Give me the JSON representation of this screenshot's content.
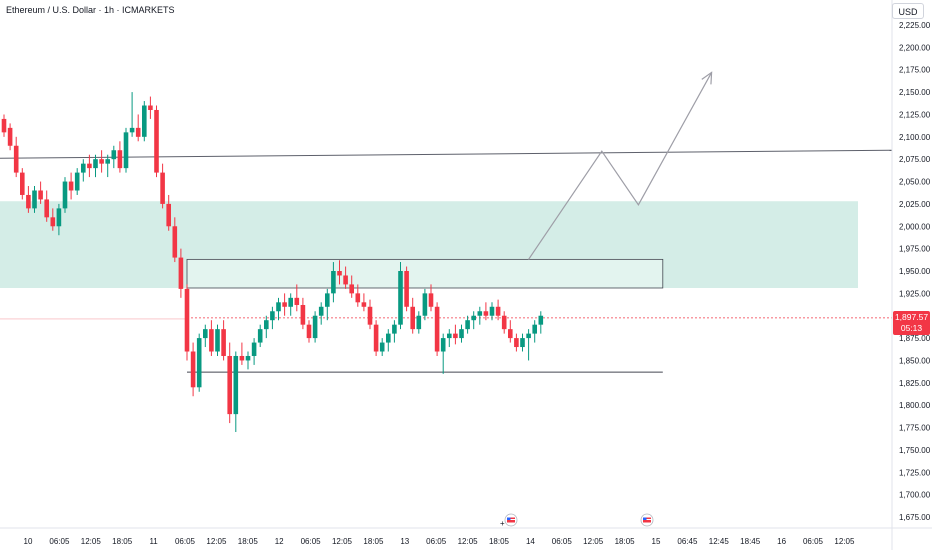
{
  "header": {
    "symbol_title": "Ethereum / U.S. Dollar · 1h · ICMARKETS",
    "currency": "USD"
  },
  "price_label": {
    "price": "1,897.57",
    "countdown": "05:13",
    "color": "#f23645"
  },
  "colors": {
    "up": "#089981",
    "down": "#f23645",
    "zone": "#cdeae3",
    "line": "#787b86"
  },
  "icons": [
    "flag-icon",
    "flag-icon"
  ],
  "chart_data": {
    "type": "candlestick",
    "title": "Ethereum / U.S. Dollar · 1h · ICMARKETS",
    "ylabel": "USD",
    "ylim": [
      1662,
      2236
    ],
    "yticks": [
      1675,
      1700,
      1725,
      1750,
      1775,
      1800,
      1825,
      1850,
      1875,
      1900,
      1925,
      1950,
      1975,
      2000,
      2025,
      2050,
      2075,
      2100,
      2125,
      2150,
      2175,
      2200,
      2225
    ],
    "y_tick_labels": [
      "1,675.00",
      "1,700.00",
      "1,725.00",
      "1,750.00",
      "1,775.00",
      "1,800.00",
      "1,825.00",
      "1,850.00",
      "1,875.00",
      "1,900.00",
      "1,925.00",
      "1,950.00",
      "1,975.00",
      "2,000.00",
      "2,025.00",
      "2,050.00",
      "2,075.00",
      "2,100.00",
      "2,125.00",
      "2,150.00",
      "2,175.00",
      "2,200.00",
      "2,225.00"
    ],
    "x_tick_labels": [
      "10",
      "06:05",
      "12:05",
      "18:05",
      "11",
      "06:05",
      "12:05",
      "18:05",
      "12",
      "06:05",
      "12:05",
      "18:05",
      "13",
      "06:05",
      "12:05",
      "18:05",
      "14",
      "06:05",
      "12:05",
      "18:05",
      "15",
      "06:45",
      "12:45",
      "18:45",
      "16",
      "06:05",
      "12:05"
    ],
    "bar_spacing_hours": 1,
    "candles": [
      [
        2120,
        2125,
        2100,
        2105
      ],
      [
        2110,
        2115,
        2085,
        2090
      ],
      [
        2090,
        2100,
        2055,
        2060
      ],
      [
        2060,
        2065,
        2030,
        2035
      ],
      [
        2035,
        2045,
        2015,
        2020
      ],
      [
        2020,
        2045,
        2015,
        2040
      ],
      [
        2040,
        2050,
        2025,
        2030
      ],
      [
        2030,
        2040,
        2005,
        2010
      ],
      [
        2010,
        2020,
        1995,
        2000
      ],
      [
        2000,
        2025,
        1990,
        2020
      ],
      [
        2020,
        2055,
        2015,
        2050
      ],
      [
        2050,
        2060,
        2030,
        2040
      ],
      [
        2040,
        2065,
        2035,
        2060
      ],
      [
        2060,
        2075,
        2050,
        2070
      ],
      [
        2070,
        2080,
        2055,
        2065
      ],
      [
        2065,
        2080,
        2055,
        2075
      ],
      [
        2075,
        2085,
        2060,
        2070
      ],
      [
        2070,
        2080,
        2055,
        2075
      ],
      [
        2075,
        2090,
        2065,
        2085
      ],
      [
        2085,
        2095,
        2060,
        2065
      ],
      [
        2065,
        2110,
        2060,
        2105
      ],
      [
        2105,
        2150,
        2100,
        2110
      ],
      [
        2110,
        2125,
        2095,
        2100
      ],
      [
        2100,
        2140,
        2095,
        2135
      ],
      [
        2135,
        2145,
        2120,
        2130
      ],
      [
        2130,
        2135,
        2055,
        2060
      ],
      [
        2060,
        2070,
        2020,
        2025
      ],
      [
        2025,
        2035,
        1995,
        2000
      ],
      [
        2000,
        2010,
        1960,
        1965
      ],
      [
        1965,
        1975,
        1920,
        1930
      ],
      [
        1930,
        1935,
        1850,
        1860
      ],
      [
        1860,
        1870,
        1810,
        1820
      ],
      [
        1820,
        1880,
        1815,
        1875
      ],
      [
        1875,
        1890,
        1865,
        1885
      ],
      [
        1885,
        1895,
        1855,
        1860
      ],
      [
        1860,
        1890,
        1855,
        1885
      ],
      [
        1885,
        1895,
        1850,
        1855
      ],
      [
        1855,
        1870,
        1780,
        1790
      ],
      [
        1790,
        1860,
        1770,
        1855
      ],
      [
        1855,
        1870,
        1845,
        1850
      ],
      [
        1850,
        1860,
        1840,
        1855
      ],
      [
        1855,
        1875,
        1845,
        1870
      ],
      [
        1870,
        1890,
        1865,
        1885
      ],
      [
        1885,
        1900,
        1875,
        1895
      ],
      [
        1895,
        1910,
        1885,
        1905
      ],
      [
        1905,
        1920,
        1895,
        1915
      ],
      [
        1915,
        1925,
        1900,
        1910
      ],
      [
        1910,
        1925,
        1900,
        1920
      ],
      [
        1920,
        1935,
        1905,
        1912
      ],
      [
        1912,
        1920,
        1885,
        1890
      ],
      [
        1890,
        1895,
        1870,
        1875
      ],
      [
        1875,
        1905,
        1870,
        1900
      ],
      [
        1900,
        1915,
        1890,
        1910
      ],
      [
        1910,
        1930,
        1895,
        1925
      ],
      [
        1925,
        1960,
        1915,
        1950
      ],
      [
        1950,
        1962,
        1935,
        1945
      ],
      [
        1945,
        1955,
        1930,
        1935
      ],
      [
        1935,
        1945,
        1920,
        1925
      ],
      [
        1925,
        1935,
        1910,
        1915
      ],
      [
        1915,
        1925,
        1905,
        1910
      ],
      [
        1910,
        1918,
        1885,
        1890
      ],
      [
        1890,
        1895,
        1855,
        1860
      ],
      [
        1860,
        1875,
        1855,
        1870
      ],
      [
        1870,
        1885,
        1860,
        1880
      ],
      [
        1880,
        1895,
        1870,
        1890
      ],
      [
        1890,
        1960,
        1885,
        1950
      ],
      [
        1950,
        1955,
        1905,
        1910
      ],
      [
        1910,
        1920,
        1880,
        1885
      ],
      [
        1885,
        1905,
        1880,
        1900
      ],
      [
        1900,
        1930,
        1895,
        1925
      ],
      [
        1925,
        1935,
        1905,
        1910
      ],
      [
        1910,
        1915,
        1855,
        1860
      ],
      [
        1860,
        1880,
        1835,
        1875
      ],
      [
        1875,
        1885,
        1865,
        1880
      ],
      [
        1880,
        1890,
        1868,
        1875
      ],
      [
        1875,
        1890,
        1870,
        1885
      ],
      [
        1885,
        1900,
        1880,
        1895
      ],
      [
        1895,
        1905,
        1885,
        1900
      ],
      [
        1900,
        1910,
        1890,
        1905
      ],
      [
        1905,
        1915,
        1895,
        1900
      ],
      [
        1900,
        1915,
        1895,
        1910
      ],
      [
        1910,
        1918,
        1895,
        1900
      ],
      [
        1900,
        1905,
        1880,
        1885
      ],
      [
        1885,
        1895,
        1870,
        1875
      ],
      [
        1875,
        1880,
        1860,
        1865
      ],
      [
        1865,
        1880,
        1860,
        1875
      ],
      [
        1875,
        1885,
        1850,
        1880
      ],
      [
        1880,
        1895,
        1870,
        1890
      ],
      [
        1890,
        1905,
        1880,
        1900
      ]
    ],
    "current_price": 1897.57,
    "drawings": {
      "horizontal_line": {
        "p1": [
          -12,
          2076
        ],
        "p2": [
          140,
          2085
        ]
      },
      "zone_upper": {
        "top": 2028,
        "bottom": 1931,
        "t_start": -12,
        "t_end": 140
      },
      "zone_range": {
        "top": 1963,
        "bottom": 1931,
        "t_start": 30,
        "t_end": 108
      },
      "range_low": {
        "price": 1837,
        "t_start": 30,
        "t_end": 108
      },
      "projection_path": [
        [
          86,
          1963
        ],
        [
          98,
          2084
        ],
        [
          104,
          2024
        ],
        [
          116,
          2172
        ]
      ]
    },
    "grid": false,
    "legend": "none"
  }
}
